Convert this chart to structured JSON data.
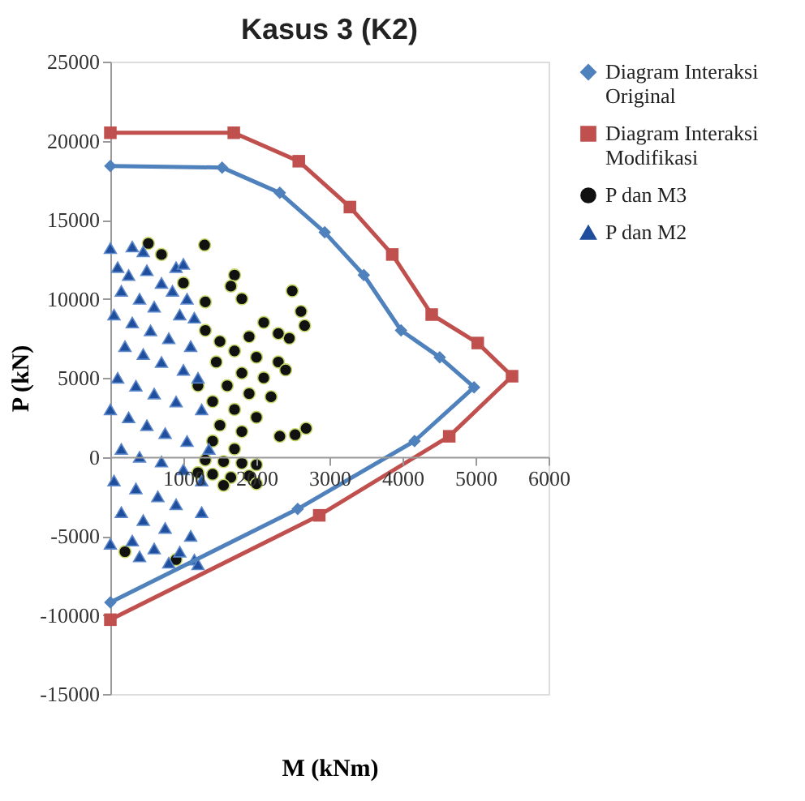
{
  "chart_data": {
    "type": "scatter",
    "title": "Kasus 3 (K2)",
    "xlabel": "M (kNm)",
    "ylabel": "P (kN)",
    "xlim": [
      0,
      6000
    ],
    "xticks": [
      1000,
      2000,
      3000,
      4000,
      5000,
      6000
    ],
    "ylim": [
      -15000,
      25000
    ],
    "yticks": [
      -15000,
      -10000,
      -5000,
      0,
      5000,
      10000,
      15000,
      20000,
      25000
    ],
    "grid": false,
    "legend": "right",
    "series": [
      {
        "name": "Diagram Interaksi Original",
        "type": "line",
        "marker": "diamond",
        "color": "#4f81bd",
        "x": [
          0,
          1530,
          2320,
          2935,
          3470,
          3980,
          4510,
          4980,
          4165,
          2565,
          0
        ],
        "values": [
          18400,
          18300,
          16700,
          14200,
          11500,
          8000,
          6300,
          4400,
          1000,
          -3300,
          -9200
        ]
      },
      {
        "name": "Diagram Interaksi Modifikasi",
        "type": "line",
        "marker": "square",
        "color": "#c0504d",
        "x": [
          0,
          1690,
          2580,
          3280,
          3860,
          4400,
          5030,
          5500,
          4640,
          2860,
          0
        ],
        "values": [
          20500,
          20500,
          18700,
          15800,
          12800,
          9000,
          7200,
          5100,
          1300,
          -3700,
          -10300
        ]
      },
      {
        "name": "P dan M3",
        "marker": "circle",
        "color": "#111111",
        "x": [
          520,
          1290,
          700,
          1700,
          1650,
          1300,
          1800,
          2490,
          2610,
          2660,
          2450,
          2300,
          2100,
          1900,
          1500,
          1700,
          2000,
          2300,
          1450,
          1800,
          2100,
          2400,
          1600,
          1900,
          2200,
          1400,
          1700,
          2000,
          1500,
          1800,
          2320,
          2530,
          2680,
          1400,
          1700,
          1300,
          1550,
          1800,
          2000,
          1400,
          1650,
          1900,
          2000,
          1550,
          1200,
          900,
          200,
          1200,
          1300,
          1000
        ],
        "values": [
          13500,
          13400,
          12800,
          11500,
          10800,
          9800,
          10000,
          10500,
          9200,
          8300,
          7500,
          7800,
          8500,
          7600,
          7300,
          6700,
          6300,
          6000,
          6000,
          5300,
          5000,
          5500,
          4500,
          4000,
          3800,
          3500,
          3000,
          2500,
          2000,
          1600,
          1300,
          1400,
          1800,
          1000,
          500,
          -200,
          -300,
          -400,
          -500,
          -1100,
          -1300,
          -1200,
          -1700,
          -1800,
          -1000,
          -6500,
          -6000,
          4500,
          8000,
          11000
        ]
      },
      {
        "name": "P dan M2",
        "marker": "triangle",
        "color": "#1f4e9c",
        "x": [
          0,
          300,
          450,
          900,
          1000,
          100,
          250,
          500,
          700,
          850,
          1050,
          150,
          400,
          600,
          950,
          1150,
          50,
          300,
          550,
          800,
          1100,
          200,
          450,
          700,
          1000,
          1200,
          100,
          350,
          600,
          900,
          1250,
          0,
          250,
          500,
          750,
          1050,
          1350,
          150,
          400,
          700,
          1000,
          1250,
          50,
          350,
          650,
          900,
          1250,
          150,
          450,
          750,
          1100,
          300,
          600,
          950,
          1150,
          800,
          1200,
          0,
          400
        ],
        "values": [
          13200,
          13300,
          13000,
          12000,
          12200,
          12000,
          11500,
          11800,
          11000,
          10500,
          10000,
          10500,
          10000,
          9500,
          9000,
          8800,
          9000,
          8500,
          8000,
          7500,
          7000,
          7000,
          6500,
          6000,
          5500,
          5000,
          5000,
          4500,
          4000,
          3500,
          3000,
          3000,
          2500,
          2000,
          1500,
          1000,
          500,
          500,
          0,
          -300,
          -800,
          -1500,
          -1500,
          -2000,
          -2500,
          -3000,
          -3500,
          -3500,
          -4000,
          -4500,
          -5000,
          -5300,
          -5800,
          -6000,
          -6500,
          -6700,
          -6800,
          -5500,
          -6300
        ]
      }
    ]
  }
}
